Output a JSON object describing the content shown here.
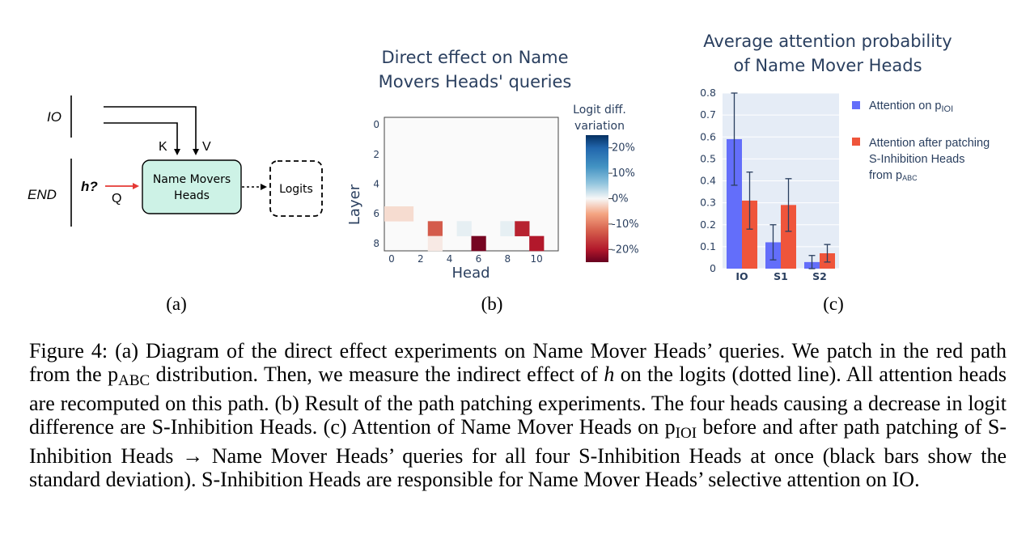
{
  "panel_a": {
    "label": "(a)",
    "io_label": "IO",
    "end_label": "END",
    "h_label": "h?",
    "q_label": "Q",
    "k_label": "K",
    "v_label": "V",
    "box_line1": "Name Movers",
    "box_line2": "Heads",
    "logits_label": "Logits",
    "colors": {
      "box_fill": "#cdf2e6",
      "red_path": "#e53935"
    }
  },
  "panel_b": {
    "label": "(b)",
    "title_line1": "Direct effect on Name",
    "title_line2": "Movers Heads' queries",
    "colorbar_title_line1": "Logit diff.",
    "colorbar_title_line2": "variation"
  },
  "panel_c": {
    "label": "(c)",
    "title_line1": "Average attention probability",
    "title_line2": "of Name Mover Heads",
    "legend_1_main": "Attention on p",
    "legend_1_sub": "IOI",
    "legend_2_line1": "Attention after patching",
    "legend_2_line2": "S-Inhibition Heads",
    "legend_2_line3_main": "from p",
    "legend_2_line3_sub": "ABC"
  },
  "caption": {
    "s1": "Figure 4: (a) Diagram of the direct effect experiments on Name Mover Heads’ queries. We patch in the red path from the p",
    "s1_sub": "ABC",
    "s2": " distribution. Then, we measure the indirect effect of ",
    "s2_var": "h",
    "s3": " on the logits (dotted line). All attention heads are recomputed on this path. (b) Result of the path patching experiments. The four heads causing a decrease in logit difference are S-Inhibition Heads. (c) Attention of Name Mover Heads on p",
    "s3_sub": "IOI",
    "s4": " before and after path patching of S-Inhibition Heads → Name Mover Heads’ queries for all four S-Inhibition Heads at once (black bars show the standard deviation). S-Inhibition Heads are responsible for Name Mover Heads’ selective attention on IO."
  },
  "chart_data": [
    {
      "type": "heatmap",
      "xlabel": "Head",
      "ylabel": "Layer",
      "x_ticks": [
        0,
        2,
        4,
        6,
        8,
        10
      ],
      "y_ticks": [
        0,
        2,
        4,
        6,
        8
      ],
      "n_heads": 12,
      "n_layers": 9,
      "value_range": [
        -25,
        25
      ],
      "colorbar_ticks": [
        "20%",
        "10%",
        "0%",
        "-10%",
        "-20%"
      ],
      "colorbar_values": [
        20,
        10,
        0,
        -10,
        -20
      ],
      "cells": [
        {
          "layer": 6,
          "head": 0,
          "value": -2
        },
        {
          "layer": 6,
          "head": 1,
          "value": -2
        },
        {
          "layer": 7,
          "head": 3,
          "value": -13
        },
        {
          "layer": 7,
          "head": 5,
          "value": 1
        },
        {
          "layer": 7,
          "head": 8,
          "value": 1
        },
        {
          "layer": 7,
          "head": 9,
          "value": -19
        },
        {
          "layer": 8,
          "head": 3,
          "value": -1
        },
        {
          "layer": 8,
          "head": 6,
          "value": -24
        },
        {
          "layer": 8,
          "head": 10,
          "value": -20
        }
      ]
    },
    {
      "type": "bar",
      "categories": [
        "IO",
        "S1",
        "S2"
      ],
      "series": [
        {
          "name": "Attention on pIOI",
          "values": [
            0.59,
            0.12,
            0.03
          ],
          "err": [
            0.21,
            0.08,
            0.03
          ],
          "color": "#636efa"
        },
        {
          "name": "Attention after patching S-Inhibition Heads from pABC",
          "values": [
            0.31,
            0.29,
            0.07
          ],
          "err": [
            0.13,
            0.12,
            0.04
          ],
          "color": "#ef553b"
        }
      ],
      "ylim": [
        0,
        0.8
      ],
      "y_ticks": [
        "0",
        "0.1",
        "0.2",
        "0.3",
        "0.4",
        "0.5",
        "0.6",
        "0.7",
        "0.8"
      ],
      "background": "#e5ecf6"
    }
  ]
}
